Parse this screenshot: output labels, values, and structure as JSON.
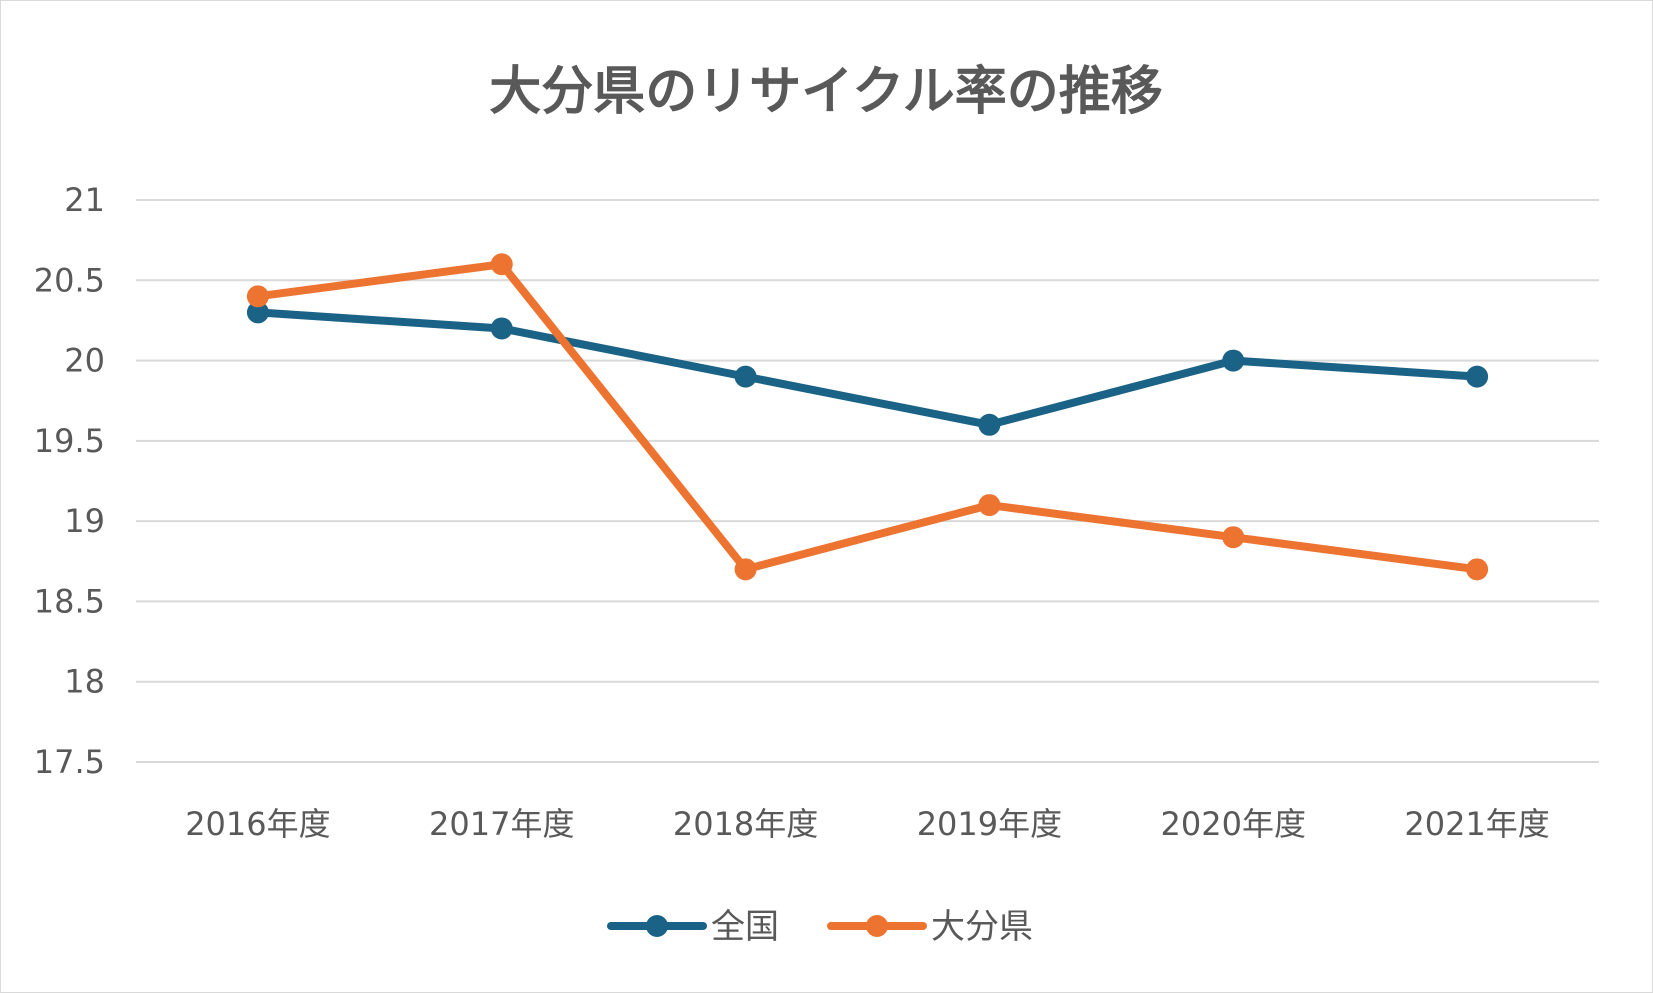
{
  "chart_data": {
    "type": "line",
    "title": "大分県のリサイクル率の推移",
    "categories": [
      "2016年度",
      "2017年度",
      "2018年度",
      "2019年度",
      "2020年度",
      "2021年度"
    ],
    "series": [
      {
        "name": "全国",
        "values": [
          20.3,
          20.2,
          19.9,
          19.6,
          20.0,
          19.9
        ],
        "color": "#1a6286"
      },
      {
        "name": "大分県",
        "values": [
          20.4,
          20.6,
          18.7,
          19.1,
          18.9,
          18.7
        ],
        "color": "#ed7331"
      }
    ],
    "ylim": [
      17.5,
      21
    ],
    "yticks": [
      "17.5",
      "18",
      "18.5",
      "19",
      "19.5",
      "20",
      "20.5",
      "21"
    ],
    "grid": true,
    "gridColor": "#d9d9d9",
    "legend": "bottom"
  }
}
